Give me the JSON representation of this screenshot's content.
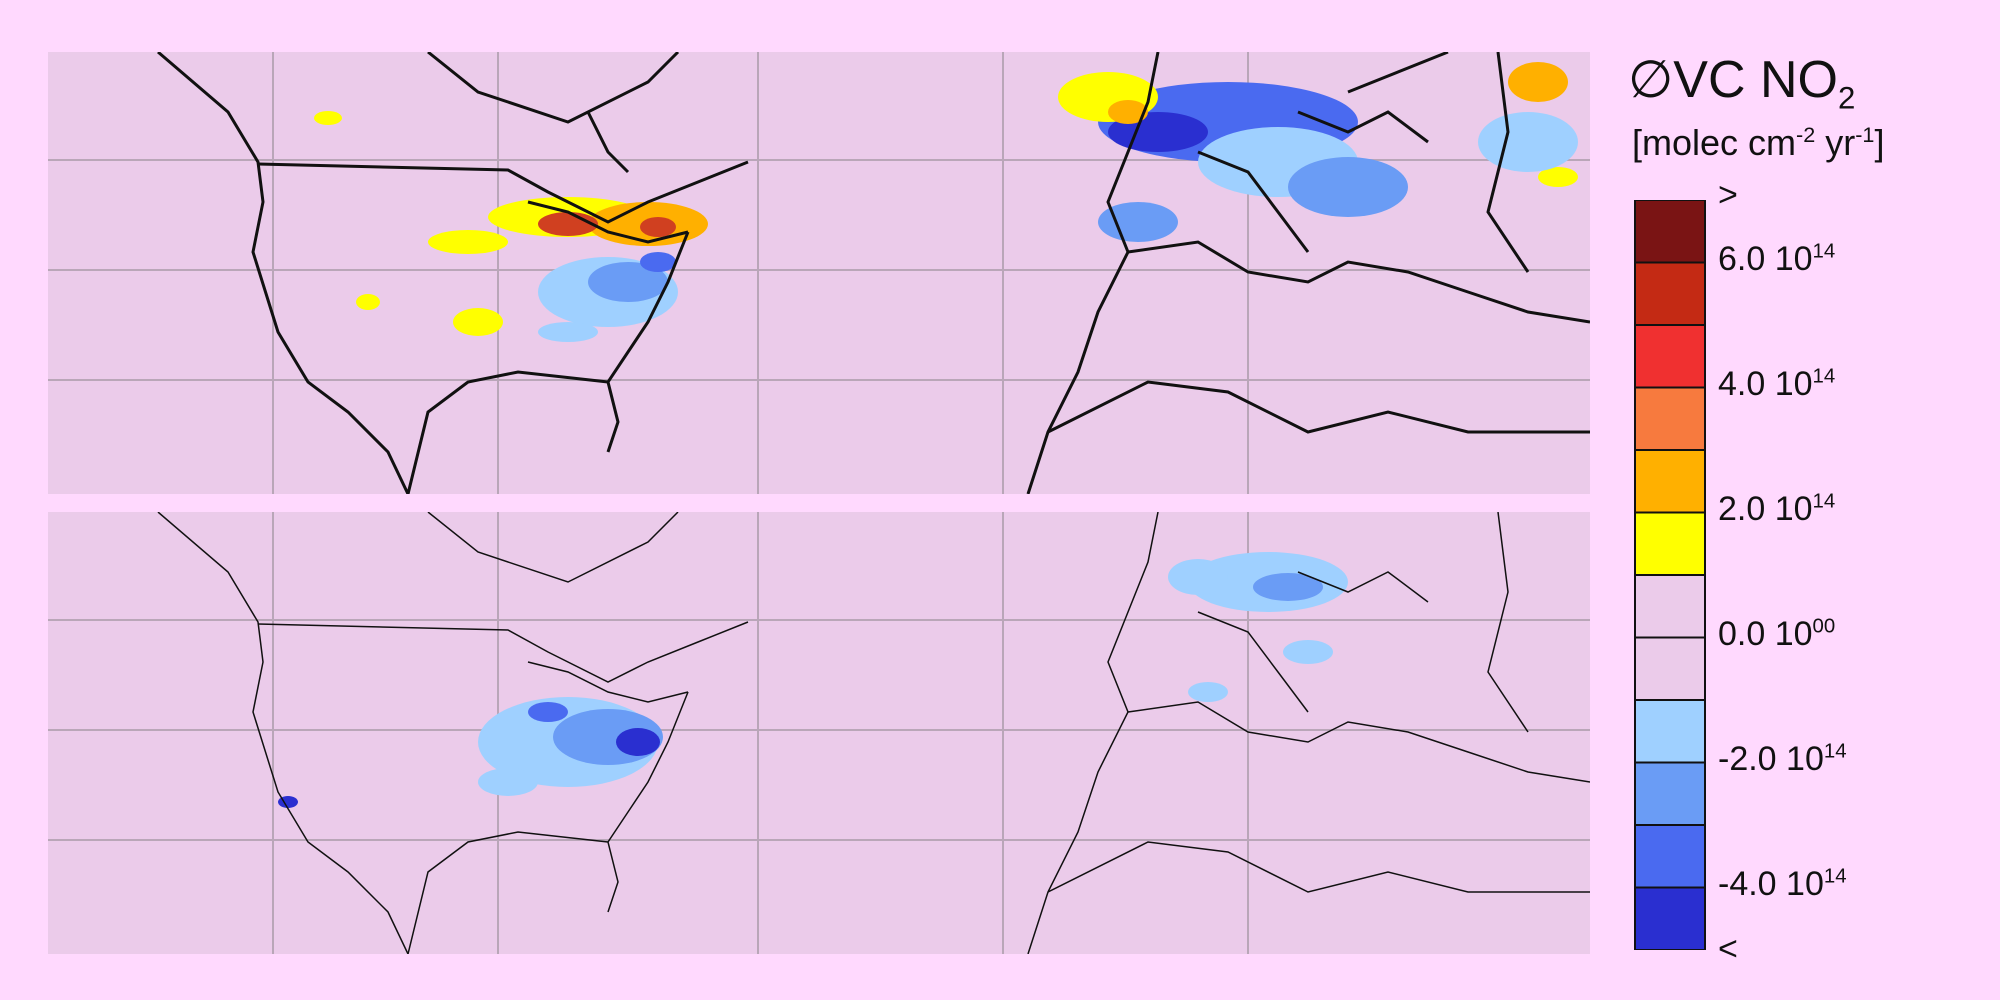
{
  "legend": {
    "title_symbol": "∅",
    "title_main": "VC NO",
    "title_sub": "2",
    "units_prefix": "[molec cm",
    "units_exp1": "-2",
    "units_mid": " yr",
    "units_exp2": "-1",
    "units_suffix": "]",
    "over_label": ">",
    "under_label": "<",
    "ticks": [
      {
        "mantissa": "6.0 10",
        "exponent": "14"
      },
      {
        "mantissa": "4.0 10",
        "exponent": "14"
      },
      {
        "mantissa": "2.0 10",
        "exponent": "14"
      },
      {
        "mantissa": "0.0 10",
        "exponent": "00"
      },
      {
        "mantissa": "-2.0 10",
        "exponent": "14"
      },
      {
        "mantissa": "-4.0 10",
        "exponent": "14"
      }
    ],
    "colors": [
      "#7a1414",
      "#c42a14",
      "#f03030",
      "#f77a3e",
      "#ffb000",
      "#ffff00",
      "#ebcbea",
      "#ebcbea",
      "#9fd0ff",
      "#6a9cf5",
      "#4a6af0",
      "#2a2fd0"
    ]
  },
  "maps": [
    {
      "panel": "top",
      "background": "#ebcbea"
    },
    {
      "panel": "bottom",
      "background": "#ebcbea"
    }
  ]
}
